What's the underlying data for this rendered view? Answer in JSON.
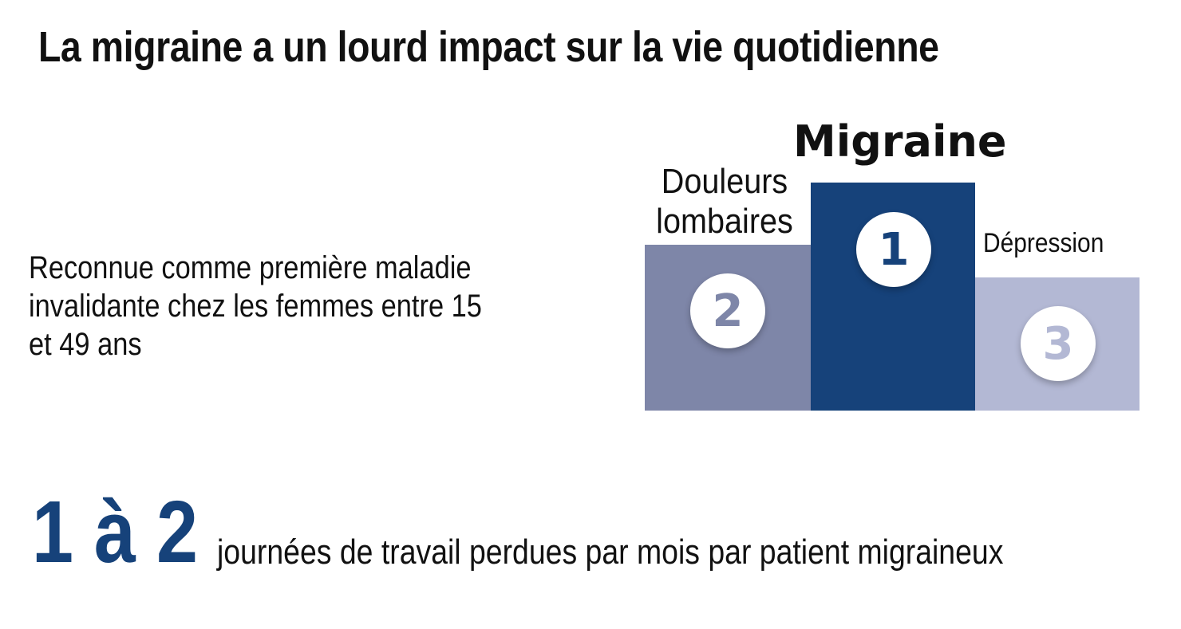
{
  "title": "La migraine a un lourd impact sur la vie quotidienne",
  "description": [
    "Reconnue comme première maladie",
    "invalidante chez les femmes entre 15",
    "et 49 ans"
  ],
  "podium": {
    "first": {
      "rank": "1",
      "label": "Migraine",
      "color": "#16427a"
    },
    "second": {
      "rank": "2",
      "label_line1": "Douleurs",
      "label_line2": "lombaires",
      "color": "#7e86a8"
    },
    "third": {
      "rank": "3",
      "label": "Dépression",
      "color": "#b3b8d4"
    }
  },
  "stat": {
    "value": "1 à 2",
    "text": "journées de travail perdues par mois par patient migraineux",
    "color": "#16427a"
  }
}
